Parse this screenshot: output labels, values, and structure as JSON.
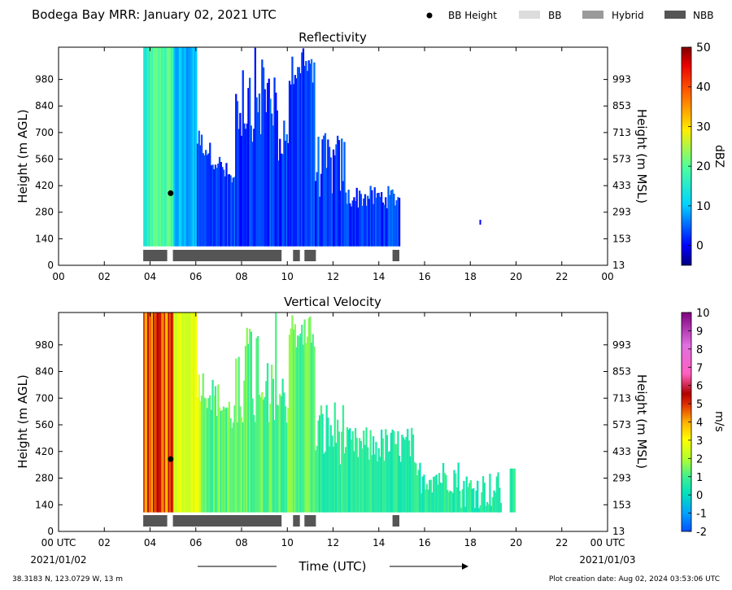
{
  "header": {
    "title": "Bodega Bay MRR:  January 02, 2021 UTC",
    "legend": [
      {
        "label": "BB Height",
        "kind": "dot",
        "color": "#000000"
      },
      {
        "label": "BB",
        "kind": "bar",
        "color": "#dcdcdc"
      },
      {
        "label": "Hybrid",
        "kind": "bar",
        "color": "#9a9a9a"
      },
      {
        "label": "NBB",
        "kind": "bar",
        "color": "#555555"
      }
    ]
  },
  "footer": {
    "location": "38.3183 N, 123.0729 W, 13 m",
    "created": "Plot creation date: Aug 02, 2024 03:53:06 UTC",
    "xlabel": "Time (UTC)",
    "start_date": "2021/01/02",
    "end_date": "2021/01/03"
  },
  "chart_data": [
    {
      "type": "heatmap",
      "title": "Reflectivity",
      "ylabel_left": "Height (m AGL)",
      "ylabel_right": "Height (m MSL)",
      "xlim": [
        0,
        24
      ],
      "ylim": [
        0,
        1150
      ],
      "x_ticks": [
        "00",
        "02",
        "04",
        "06",
        "08",
        "10",
        "12",
        "14",
        "16",
        "18",
        "20",
        "22",
        "00"
      ],
      "y_ticks_left": [
        0,
        140,
        280,
        420,
        560,
        700,
        840,
        980
      ],
      "y_ticks_right": [
        13,
        153,
        293,
        433,
        573,
        713,
        853,
        993
      ],
      "colorbar": {
        "label": "dBZ",
        "min": -5,
        "max": 50,
        "ticks": [
          0,
          10,
          20,
          30,
          40,
          50
        ]
      },
      "bb_height": [
        {
          "time": 4.9,
          "height": 380
        }
      ],
      "bands": [
        {
          "start": 3.7,
          "end": 4.75,
          "class": "NBB"
        },
        {
          "start": 5.0,
          "end": 9.75,
          "class": "NBB"
        },
        {
          "start": 10.25,
          "end": 10.55,
          "class": "NBB"
        },
        {
          "start": 10.75,
          "end": 11.25,
          "class": "NBB"
        },
        {
          "start": 14.6,
          "end": 14.9,
          "class": "NBB"
        }
      ]
    },
    {
      "type": "heatmap",
      "title": "Vertical Velocity",
      "ylabel_left": "Height (m AGL)",
      "ylabel_right": "Height (m MSL)",
      "xlim": [
        0,
        24
      ],
      "ylim": [
        0,
        1150
      ],
      "x_ticks": [
        "00 UTC",
        "02",
        "04",
        "06",
        "08",
        "10",
        "12",
        "14",
        "16",
        "18",
        "20",
        "22",
        "00 UTC"
      ],
      "y_ticks_left": [
        0,
        140,
        280,
        420,
        560,
        700,
        840,
        980
      ],
      "y_ticks_right": [
        13,
        153,
        293,
        433,
        573,
        713,
        853,
        993
      ],
      "colorbar": {
        "label": "m/s",
        "min": -2,
        "max": 10,
        "ticks": [
          -2,
          -1,
          0,
          1,
          2,
          3,
          4,
          5,
          6,
          7,
          8,
          9,
          10
        ]
      },
      "bb_height": [
        {
          "time": 4.9,
          "height": 380
        }
      ],
      "bands": [
        {
          "start": 3.7,
          "end": 4.75,
          "class": "NBB"
        },
        {
          "start": 5.0,
          "end": 9.75,
          "class": "NBB"
        },
        {
          "start": 10.25,
          "end": 10.55,
          "class": "NBB"
        },
        {
          "start": 10.75,
          "end": 11.25,
          "class": "NBB"
        },
        {
          "start": 14.6,
          "end": 14.9,
          "class": "NBB"
        }
      ]
    }
  ]
}
